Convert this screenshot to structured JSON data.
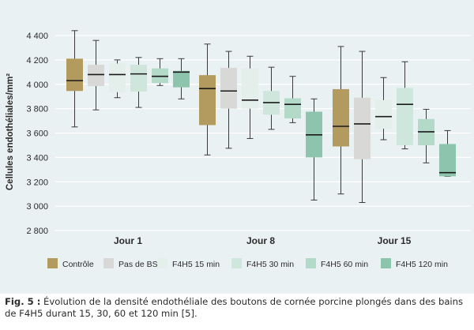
{
  "chart_data": {
    "type": "box",
    "ylabel": "Cellules endothéliales/mm²",
    "ylim": [
      2800,
      4400
    ],
    "yticks": [
      2800,
      3000,
      3200,
      3400,
      3600,
      3800,
      4000,
      4200,
      4400
    ],
    "ytick_labels": [
      "2 800",
      "3 000",
      "3 200",
      "3 400",
      "3 600",
      "3 800",
      "4 000",
      "4 200",
      "4 400"
    ],
    "grid": "horizontal",
    "legend_position": "bottom",
    "categories": [
      "Jour 1",
      "Jour 8",
      "Jour 15"
    ],
    "series": [
      {
        "name": "Contrôle",
        "color": "#b39a5e",
        "boxes": [
          {
            "min": 3650,
            "q1": 3945,
            "median": 4030,
            "q3": 4210,
            "max": 4440
          },
          {
            "min": 3420,
            "q1": 3665,
            "median": 3965,
            "q3": 4075,
            "max": 4330
          },
          {
            "min": 3100,
            "q1": 3490,
            "median": 3655,
            "q3": 3960,
            "max": 4310
          }
        ]
      },
      {
        "name": "Pas de BSS",
        "color": "#d8d8d6",
        "boxes": [
          {
            "min": 3790,
            "q1": 3985,
            "median": 4080,
            "q3": 4160,
            "max": 4360
          },
          {
            "min": 3475,
            "q1": 3800,
            "median": 3945,
            "q3": 4135,
            "max": 4270
          },
          {
            "min": 3030,
            "q1": 3385,
            "median": 3675,
            "q3": 3890,
            "max": 4270
          }
        ]
      },
      {
        "name": "F4H5 15 min",
        "color": "#e4eeea",
        "boxes": [
          {
            "min": 3890,
            "q1": 3935,
            "median": 4080,
            "q3": 4170,
            "max": 4200
          },
          {
            "min": 3555,
            "q1": 3800,
            "median": 3870,
            "q3": 4130,
            "max": 4230
          },
          {
            "min": 3545,
            "q1": 3635,
            "median": 3735,
            "q3": 3870,
            "max": 4055
          }
        ]
      },
      {
        "name": "F4H5 30 min",
        "color": "#cfe6dc",
        "boxes": [
          {
            "min": 3810,
            "q1": 3940,
            "median": 4085,
            "q3": 4160,
            "max": 4220
          },
          {
            "min": 3630,
            "q1": 3750,
            "median": 3850,
            "q3": 3945,
            "max": 4140
          },
          {
            "min": 3470,
            "q1": 3500,
            "median": 3835,
            "q3": 3970,
            "max": 4185
          }
        ]
      },
      {
        "name": "F4H5 60 min",
        "color": "#b3d9c8",
        "boxes": [
          {
            "min": 3990,
            "q1": 4010,
            "median": 4065,
            "q3": 4130,
            "max": 4210
          },
          {
            "min": 3685,
            "q1": 3720,
            "median": 3835,
            "q3": 3885,
            "max": 4065
          },
          {
            "min": 3355,
            "q1": 3500,
            "median": 3610,
            "q3": 3715,
            "max": 3795
          }
        ]
      },
      {
        "name": "F4H5 120 min",
        "color": "#8cc4ad",
        "boxes": [
          {
            "min": 3880,
            "q1": 3975,
            "median": 4100,
            "q3": 4110,
            "max": 4210
          },
          {
            "min": 3050,
            "q1": 3400,
            "median": 3585,
            "q3": 3775,
            "max": 3880
          },
          {
            "min": 3245,
            "q1": 3245,
            "median": 3275,
            "q3": 3510,
            "max": 3620
          }
        ]
      }
    ]
  },
  "caption": {
    "label": "Fig. 5 :",
    "text": " Évolution de la densité endothéliale des boutons de cornée porcine plongés dans des bains de F4H5 durant 15, 30, 60 et 120 min [5]."
  }
}
